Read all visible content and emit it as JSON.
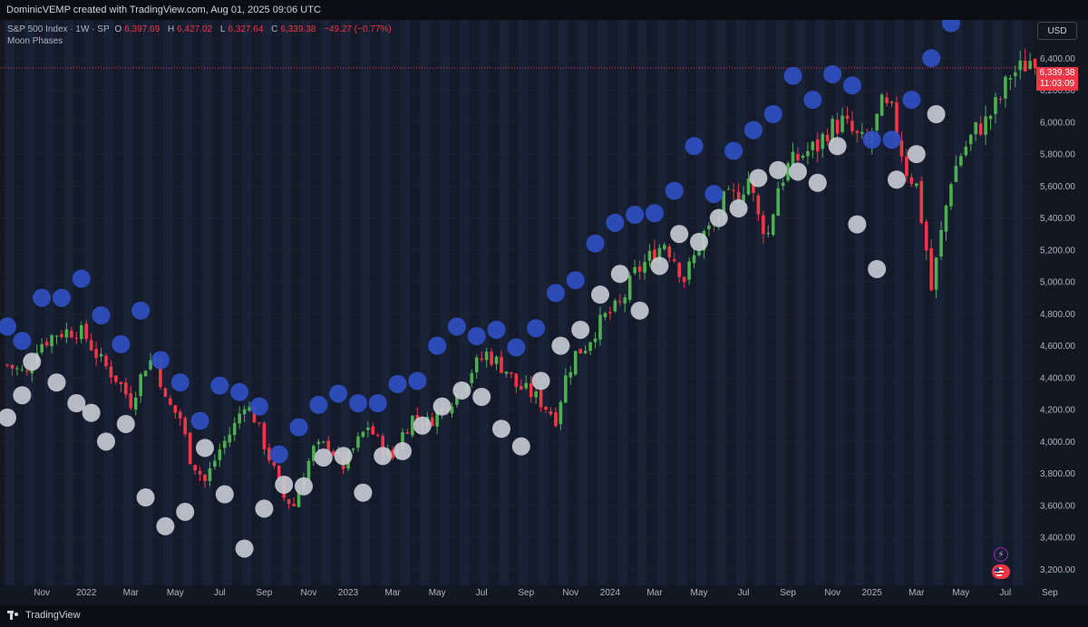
{
  "header": {
    "attribution": "DominicVEMP created with TradingView.com, Aug 01, 2025 09:06 UTC"
  },
  "legend": {
    "symbol": "S&P 500 Index · 1W · SP",
    "open_label": "O",
    "open": "6,397.69",
    "high_label": "H",
    "high": "6,427.02",
    "low_label": "L",
    "low": "6,327.64",
    "close_label": "C",
    "close": "6,339.38",
    "change": "−49.27 (−0.77%)",
    "indicator": "Moon Phases"
  },
  "currency_button": "USD",
  "last_price": {
    "value": "6,339.38",
    "countdown": "11:03:09"
  },
  "footer": {
    "brand": "TradingView"
  },
  "colors": {
    "up": "#4caf50",
    "down": "#f23645",
    "full_moon": "#c9ccd4",
    "new_moon": "#2f4fc2",
    "background": "#131722"
  },
  "chart_data": {
    "type": "candlestick",
    "interval": "1W",
    "y_axis": {
      "range": [
        3100,
        6640
      ],
      "ticks": [
        3200,
        3400,
        3600,
        3800,
        4000,
        4200,
        4400,
        4600,
        4800,
        5000,
        5200,
        5400,
        5600,
        5800,
        6000,
        6200,
        6400
      ],
      "tick_labels": [
        "3,200.00",
        "3,400.00",
        "3,600.00",
        "3,800.00",
        "4,000.00",
        "4,200.00",
        "4,400.00",
        "4,600.00",
        "4,800.00",
        "5,000.00",
        "5,200.00",
        "5,400.00",
        "5,600.00",
        "5,800.00",
        "6,000.00",
        "6,200.00",
        "6,400.00"
      ]
    },
    "x_axis": {
      "start_week": 0,
      "end_week": 262,
      "labels": [
        {
          "week": 7,
          "text": "Nov"
        },
        {
          "week": 16,
          "text": "2022"
        },
        {
          "week": 25,
          "text": "Mar"
        },
        {
          "week": 34,
          "text": "May"
        },
        {
          "week": 43,
          "text": "Jul"
        },
        {
          "week": 52,
          "text": "Sep"
        },
        {
          "week": 61,
          "text": "Nov"
        },
        {
          "week": 69,
          "text": "2023"
        },
        {
          "week": 78,
          "text": "Mar"
        },
        {
          "week": 87,
          "text": "May"
        },
        {
          "week": 96,
          "text": "Jul"
        },
        {
          "week": 105,
          "text": "Sep"
        },
        {
          "week": 114,
          "text": "Nov"
        },
        {
          "week": 122,
          "text": "2024"
        },
        {
          "week": 131,
          "text": "Mar"
        },
        {
          "week": 140,
          "text": "May"
        },
        {
          "week": 149,
          "text": "Jul"
        },
        {
          "week": 158,
          "text": "Sep"
        },
        {
          "week": 167,
          "text": "Nov"
        },
        {
          "week": 175,
          "text": "2025"
        },
        {
          "week": 184,
          "text": "Mar"
        },
        {
          "week": 193,
          "text": "May"
        },
        {
          "week": 202,
          "text": "Jul"
        },
        {
          "week": 211,
          "text": "Sep"
        }
      ]
    },
    "price_path": [
      [
        0,
        4480
      ],
      [
        4,
        4420
      ],
      [
        6,
        4600
      ],
      [
        10,
        4680
      ],
      [
        14,
        4700
      ],
      [
        16,
        4650
      ],
      [
        19,
        4500
      ],
      [
        22,
        4400
      ],
      [
        25,
        4250
      ],
      [
        28,
        4480
      ],
      [
        30,
        4530
      ],
      [
        32,
        4250
      ],
      [
        35,
        4150
      ],
      [
        37,
        3900
      ],
      [
        40,
        3750
      ],
      [
        43,
        3950
      ],
      [
        46,
        4100
      ],
      [
        48,
        4250
      ],
      [
        50,
        4150
      ],
      [
        53,
        3900
      ],
      [
        56,
        3650
      ],
      [
        58,
        3600
      ],
      [
        60,
        3800
      ],
      [
        62,
        3950
      ],
      [
        65,
        3980
      ],
      [
        68,
        3850
      ],
      [
        71,
        4000
      ],
      [
        73,
        4100
      ],
      [
        76,
        3950
      ],
      [
        78,
        3900
      ],
      [
        80,
        4050
      ],
      [
        82,
        4150
      ],
      [
        85,
        4120
      ],
      [
        88,
        4200
      ],
      [
        91,
        4300
      ],
      [
        94,
        4450
      ],
      [
        97,
        4550
      ],
      [
        99,
        4500
      ],
      [
        101,
        4450
      ],
      [
        103,
        4350
      ],
      [
        106,
        4300
      ],
      [
        108,
        4250
      ],
      [
        111,
        4150
      ],
      [
        113,
        4400
      ],
      [
        115,
        4550
      ],
      [
        117,
        4600
      ],
      [
        119,
        4700
      ],
      [
        121,
        4780
      ],
      [
        124,
        4850
      ],
      [
        127,
        5050
      ],
      [
        130,
        5150
      ],
      [
        133,
        5250
      ],
      [
        135,
        5150
      ],
      [
        137,
        5020
      ],
      [
        139,
        5150
      ],
      [
        141,
        5300
      ],
      [
        143,
        5350
      ],
      [
        145,
        5500
      ],
      [
        148,
        5550
      ],
      [
        150,
        5650
      ],
      [
        152,
        5400
      ],
      [
        154,
        5300
      ],
      [
        156,
        5600
      ],
      [
        158,
        5720
      ],
      [
        161,
        5800
      ],
      [
        164,
        5850
      ],
      [
        166,
        5950
      ],
      [
        169,
        6000
      ],
      [
        172,
        5900
      ],
      [
        174,
        5850
      ],
      [
        177,
        6100
      ],
      [
        179,
        6050
      ],
      [
        182,
        5700
      ],
      [
        184,
        5600
      ],
      [
        186,
        5200
      ],
      [
        187,
        4950
      ],
      [
        189,
        5300
      ],
      [
        191,
        5650
      ],
      [
        193,
        5800
      ],
      [
        196,
        5950
      ],
      [
        198,
        6000
      ],
      [
        201,
        6150
      ],
      [
        203,
        6300
      ],
      [
        205,
        6330
      ],
      [
        207,
        6390
      ],
      [
        208,
        6339
      ]
    ],
    "last_close": 6339.38,
    "full_moons": [
      [
        0,
        4150
      ],
      [
        3,
        4290
      ],
      [
        5,
        4500
      ],
      [
        10,
        4370
      ],
      [
        14,
        4240
      ],
      [
        17,
        4180
      ],
      [
        20,
        4000
      ],
      [
        24,
        4110
      ],
      [
        28,
        3650
      ],
      [
        32,
        3470
      ],
      [
        36,
        3560
      ],
      [
        40,
        3960
      ],
      [
        44,
        3670
      ],
      [
        48,
        3330
      ],
      [
        52,
        3580
      ],
      [
        56,
        3730
      ],
      [
        60,
        3720
      ],
      [
        64,
        3900
      ],
      [
        68,
        3910
      ],
      [
        72,
        3680
      ],
      [
        76,
        3910
      ],
      [
        80,
        3940
      ],
      [
        84,
        4100
      ],
      [
        88,
        4220
      ],
      [
        92,
        4320
      ],
      [
        96,
        4280
      ],
      [
        100,
        4080
      ],
      [
        104,
        3970
      ],
      [
        108,
        4380
      ],
      [
        112,
        4600
      ],
      [
        116,
        4700
      ],
      [
        120,
        4920
      ],
      [
        124,
        5050
      ],
      [
        128,
        4820
      ],
      [
        132,
        5100
      ],
      [
        136,
        5300
      ],
      [
        140,
        5250
      ],
      [
        144,
        5400
      ],
      [
        148,
        5460
      ],
      [
        152,
        5650
      ],
      [
        156,
        5700
      ],
      [
        160,
        5690
      ],
      [
        164,
        5620
      ],
      [
        168,
        5850
      ],
      [
        172,
        5360
      ],
      [
        176,
        5080
      ],
      [
        180,
        5640
      ],
      [
        184,
        5800
      ],
      [
        188,
        6050
      ]
    ],
    "new_moons": [
      [
        0,
        4720
      ],
      [
        3,
        4630
      ],
      [
        7,
        4900
      ],
      [
        11,
        4900
      ],
      [
        15,
        5020
      ],
      [
        19,
        4790
      ],
      [
        23,
        4610
      ],
      [
        27,
        4820
      ],
      [
        31,
        4510
      ],
      [
        35,
        4370
      ],
      [
        39,
        4130
      ],
      [
        43,
        4350
      ],
      [
        47,
        4310
      ],
      [
        51,
        4220
      ],
      [
        55,
        3920
      ],
      [
        59,
        4090
      ],
      [
        63,
        4230
      ],
      [
        67,
        4300
      ],
      [
        71,
        4240
      ],
      [
        75,
        4240
      ],
      [
        79,
        4360
      ],
      [
        83,
        4380
      ],
      [
        87,
        4600
      ],
      [
        91,
        4720
      ],
      [
        95,
        4660
      ],
      [
        99,
        4700
      ],
      [
        103,
        4590
      ],
      [
        107,
        4710
      ],
      [
        111,
        4930
      ],
      [
        115,
        5010
      ],
      [
        119,
        5240
      ],
      [
        123,
        5370
      ],
      [
        127,
        5420
      ],
      [
        131,
        5430
      ],
      [
        135,
        5570
      ],
      [
        139,
        5850
      ],
      [
        143,
        5550
      ],
      [
        147,
        5820
      ],
      [
        151,
        5950
      ],
      [
        155,
        6050
      ],
      [
        159,
        6290
      ],
      [
        163,
        6140
      ],
      [
        167,
        6300
      ],
      [
        171,
        6230
      ],
      [
        175,
        5890
      ],
      [
        179,
        5890
      ],
      [
        183,
        6140
      ],
      [
        187,
        6400
      ],
      [
        191,
        6620
      ]
    ]
  }
}
